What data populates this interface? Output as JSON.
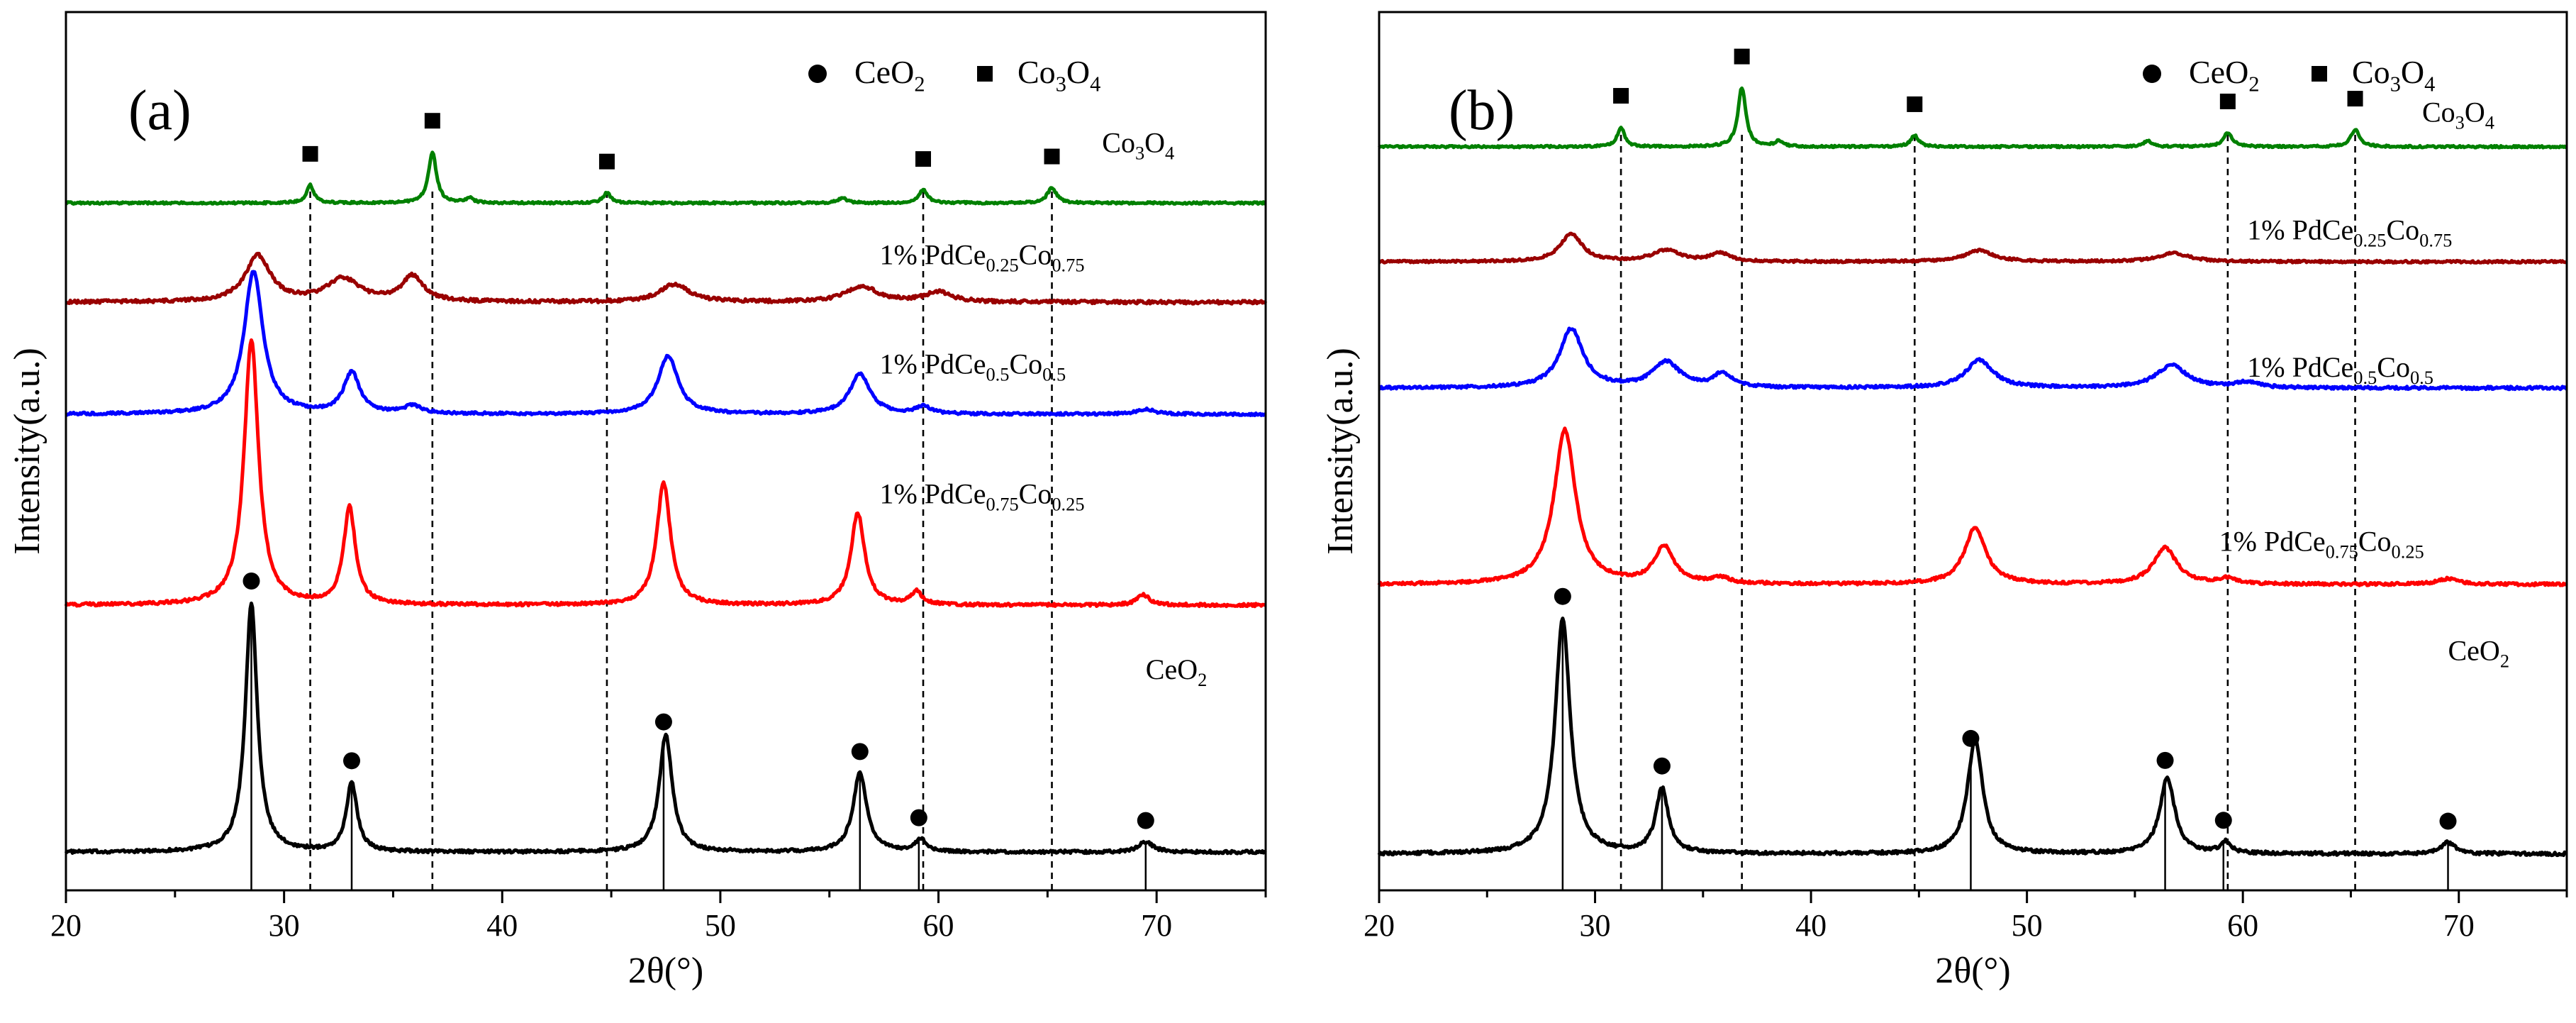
{
  "chart_data": [
    {
      "type": "line",
      "panel_label": "(a)",
      "xlabel": "2θ(°)",
      "ylabel": "Intensity(a.u.)",
      "xlim": [
        20,
        75
      ],
      "xticks": [
        "20",
        "30",
        "40",
        "50",
        "60",
        "70"
      ],
      "legend": {
        "ceo2": [
          "CeO",
          "2"
        ],
        "co3o4": [
          "Co",
          "3",
          "O",
          "4"
        ]
      },
      "reference_lines_co3o4": [
        31.2,
        36.8,
        44.8,
        59.3,
        65.2
      ],
      "series": [
        {
          "name": "CeO2",
          "color": "#000000",
          "label": [
            "CeO",
            "2"
          ],
          "label_at": [
            69.5,
            6.8
          ],
          "baseline": 0,
          "noise": 0.12,
          "peaks": [
            [
              28.5,
              9.8,
              0.33
            ],
            [
              33.1,
              2.7,
              0.3
            ],
            [
              47.5,
              4.6,
              0.36
            ],
            [
              56.4,
              3.1,
              0.38
            ],
            [
              59.2,
              0.5,
              0.3
            ],
            [
              69.5,
              0.4,
              0.4
            ]
          ],
          "markers_ceo2": [
            28.5,
            33.1,
            47.4,
            56.4,
            59.1,
            69.5
          ]
        },
        {
          "name": "1% PdCe0.75Co0.25",
          "color": "#ff0000",
          "label": [
            "1% PdCe",
            "0.75",
            "Co",
            "0.25"
          ],
          "label_at": [
            57.3,
            13.7
          ],
          "baseline": 9.7,
          "noise": 0.12,
          "peaks": [
            [
              28.5,
              10.4,
              0.4
            ],
            [
              33.0,
              3.8,
              0.33
            ],
            [
              47.4,
              4.8,
              0.38
            ],
            [
              56.3,
              3.6,
              0.38
            ],
            [
              59.0,
              0.5,
              0.3
            ],
            [
              69.4,
              0.4,
              0.35
            ]
          ]
        },
        {
          "name": "1% PdCe0.5Co0.5",
          "color": "#0000ff",
          "label": [
            "1% PdCe",
            "0.5",
            "Co",
            "0.5"
          ],
          "label_at": [
            57.3,
            18.8
          ],
          "baseline": 17.2,
          "noise": 0.1,
          "peaks": [
            [
              28.6,
              5.6,
              0.52
            ],
            [
              33.1,
              1.6,
              0.45
            ],
            [
              35.9,
              0.3,
              0.5
            ],
            [
              47.6,
              2.3,
              0.55
            ],
            [
              56.4,
              1.6,
              0.55
            ],
            [
              59.3,
              0.3,
              0.4
            ],
            [
              69.5,
              0.2,
              0.5
            ]
          ]
        },
        {
          "name": "1% PdCe0.25Co0.75",
          "color": "#990000",
          "label": [
            "1% PdCe",
            "0.25",
            "Co",
            "0.75"
          ],
          "label_at": [
            57.3,
            23.1
          ],
          "baseline": 21.6,
          "noise": 0.13,
          "peaks": [
            [
              28.8,
              1.8,
              0.7
            ],
            [
              32.7,
              0.9,
              0.9
            ],
            [
              35.9,
              1.0,
              0.6
            ],
            [
              47.9,
              0.7,
              0.8
            ],
            [
              56.5,
              0.6,
              0.9
            ],
            [
              60.0,
              0.4,
              0.7
            ]
          ]
        },
        {
          "name": "Co3O4",
          "color": "#008000",
          "label": [
            "Co",
            "3",
            "O",
            "4"
          ],
          "label_at": [
            67.5,
            27.5
          ],
          "baseline": 25.5,
          "noise": 0.08,
          "peaks": [
            [
              31.2,
              0.7,
              0.2
            ],
            [
              36.8,
              2.0,
              0.22
            ],
            [
              38.5,
              0.2,
              0.2
            ],
            [
              44.8,
              0.4,
              0.22
            ],
            [
              55.6,
              0.2,
              0.25
            ],
            [
              59.3,
              0.5,
              0.25
            ],
            [
              65.2,
              0.6,
              0.25
            ]
          ]
        }
      ],
      "ylim": [
        -1.5,
        33
      ]
    },
    {
      "type": "line",
      "panel_label": "(b)",
      "xlabel": "2θ(°)",
      "ylabel": "Intensity(a.u.)",
      "xlim": [
        20,
        75
      ],
      "xticks": [
        "20",
        "30",
        "40",
        "50",
        "60",
        "70"
      ],
      "legend": {
        "ceo2": [
          "CeO",
          "2"
        ],
        "co3o4": [
          "Co",
          "3",
          "O",
          "4"
        ]
      },
      "reference_lines_co3o4": [
        31.2,
        36.8,
        44.8,
        59.3,
        65.2
      ],
      "series": [
        {
          "name": "CeO2",
          "color": "#000000",
          "label": [
            "CeO",
            "2"
          ],
          "label_at": [
            69.5,
            6.9
          ],
          "baseline": 0,
          "noise": 0.12,
          "peaks": [
            [
              28.5,
              8.4,
              0.42
            ],
            [
              33.1,
              2.3,
              0.35
            ],
            [
              47.6,
              4.1,
              0.42
            ],
            [
              56.5,
              2.7,
              0.42
            ],
            [
              59.2,
              0.4,
              0.3
            ],
            [
              69.5,
              0.4,
              0.4
            ]
          ],
          "markers_ceo2": [
            28.5,
            33.1,
            47.4,
            56.4,
            59.1,
            69.5
          ]
        },
        {
          "name": "1% PdCe0.75Co0.25",
          "color": "#ff0000",
          "label": [
            "1% PdCe",
            "0.75",
            "Co",
            "0.25"
          ],
          "label_at": [
            58.9,
            10.8
          ],
          "baseline": 9.6,
          "noise": 0.1,
          "peaks": [
            [
              28.6,
              5.5,
              0.6
            ],
            [
              33.2,
              1.3,
              0.55
            ],
            [
              35.8,
              0.2,
              0.5
            ],
            [
              47.6,
              2.0,
              0.6
            ],
            [
              56.4,
              1.3,
              0.65
            ],
            [
              59.3,
              0.2,
              0.5
            ],
            [
              69.5,
              0.2,
              0.6
            ]
          ]
        },
        {
          "name": "1% PdCe0.5Co0.5",
          "color": "#0000ff",
          "label": [
            "1% PdCe",
            "0.5",
            "Co",
            "0.5"
          ],
          "label_at": [
            60.2,
            17.0
          ],
          "baseline": 16.6,
          "noise": 0.1,
          "peaks": [
            [
              28.9,
              2.1,
              0.65
            ],
            [
              33.3,
              0.9,
              0.75
            ],
            [
              35.9,
              0.5,
              0.5
            ],
            [
              47.8,
              1.0,
              0.75
            ],
            [
              56.7,
              0.8,
              0.85
            ],
            [
              60.2,
              0.2,
              0.6
            ]
          ]
        },
        {
          "name": "1% PdCe0.25Co0.75",
          "color": "#990000",
          "label": [
            "1% PdCe",
            "0.25",
            "Co",
            "0.75"
          ],
          "label_at": [
            60.2,
            21.9
          ],
          "baseline": 21.1,
          "noise": 0.08,
          "peaks": [
            [
              28.9,
              1.0,
              0.6
            ],
            [
              33.3,
              0.4,
              0.8
            ],
            [
              35.8,
              0.3,
              0.5
            ],
            [
              47.8,
              0.4,
              0.8
            ],
            [
              56.8,
              0.3,
              0.9
            ]
          ]
        },
        {
          "name": "Co3O4",
          "color": "#008000",
          "label": [
            "Co",
            "3",
            "O",
            "4"
          ],
          "label_at": [
            68.3,
            26.1
          ],
          "baseline": 25.2,
          "noise": 0.07,
          "peaks": [
            [
              31.2,
              0.7,
              0.2
            ],
            [
              36.8,
              2.1,
              0.22
            ],
            [
              38.5,
              0.2,
              0.2
            ],
            [
              44.8,
              0.4,
              0.22
            ],
            [
              55.6,
              0.2,
              0.25
            ],
            [
              59.3,
              0.5,
              0.25
            ],
            [
              65.2,
              0.6,
              0.25
            ]
          ]
        }
      ],
      "ylim": [
        -1.3,
        30
      ]
    }
  ]
}
